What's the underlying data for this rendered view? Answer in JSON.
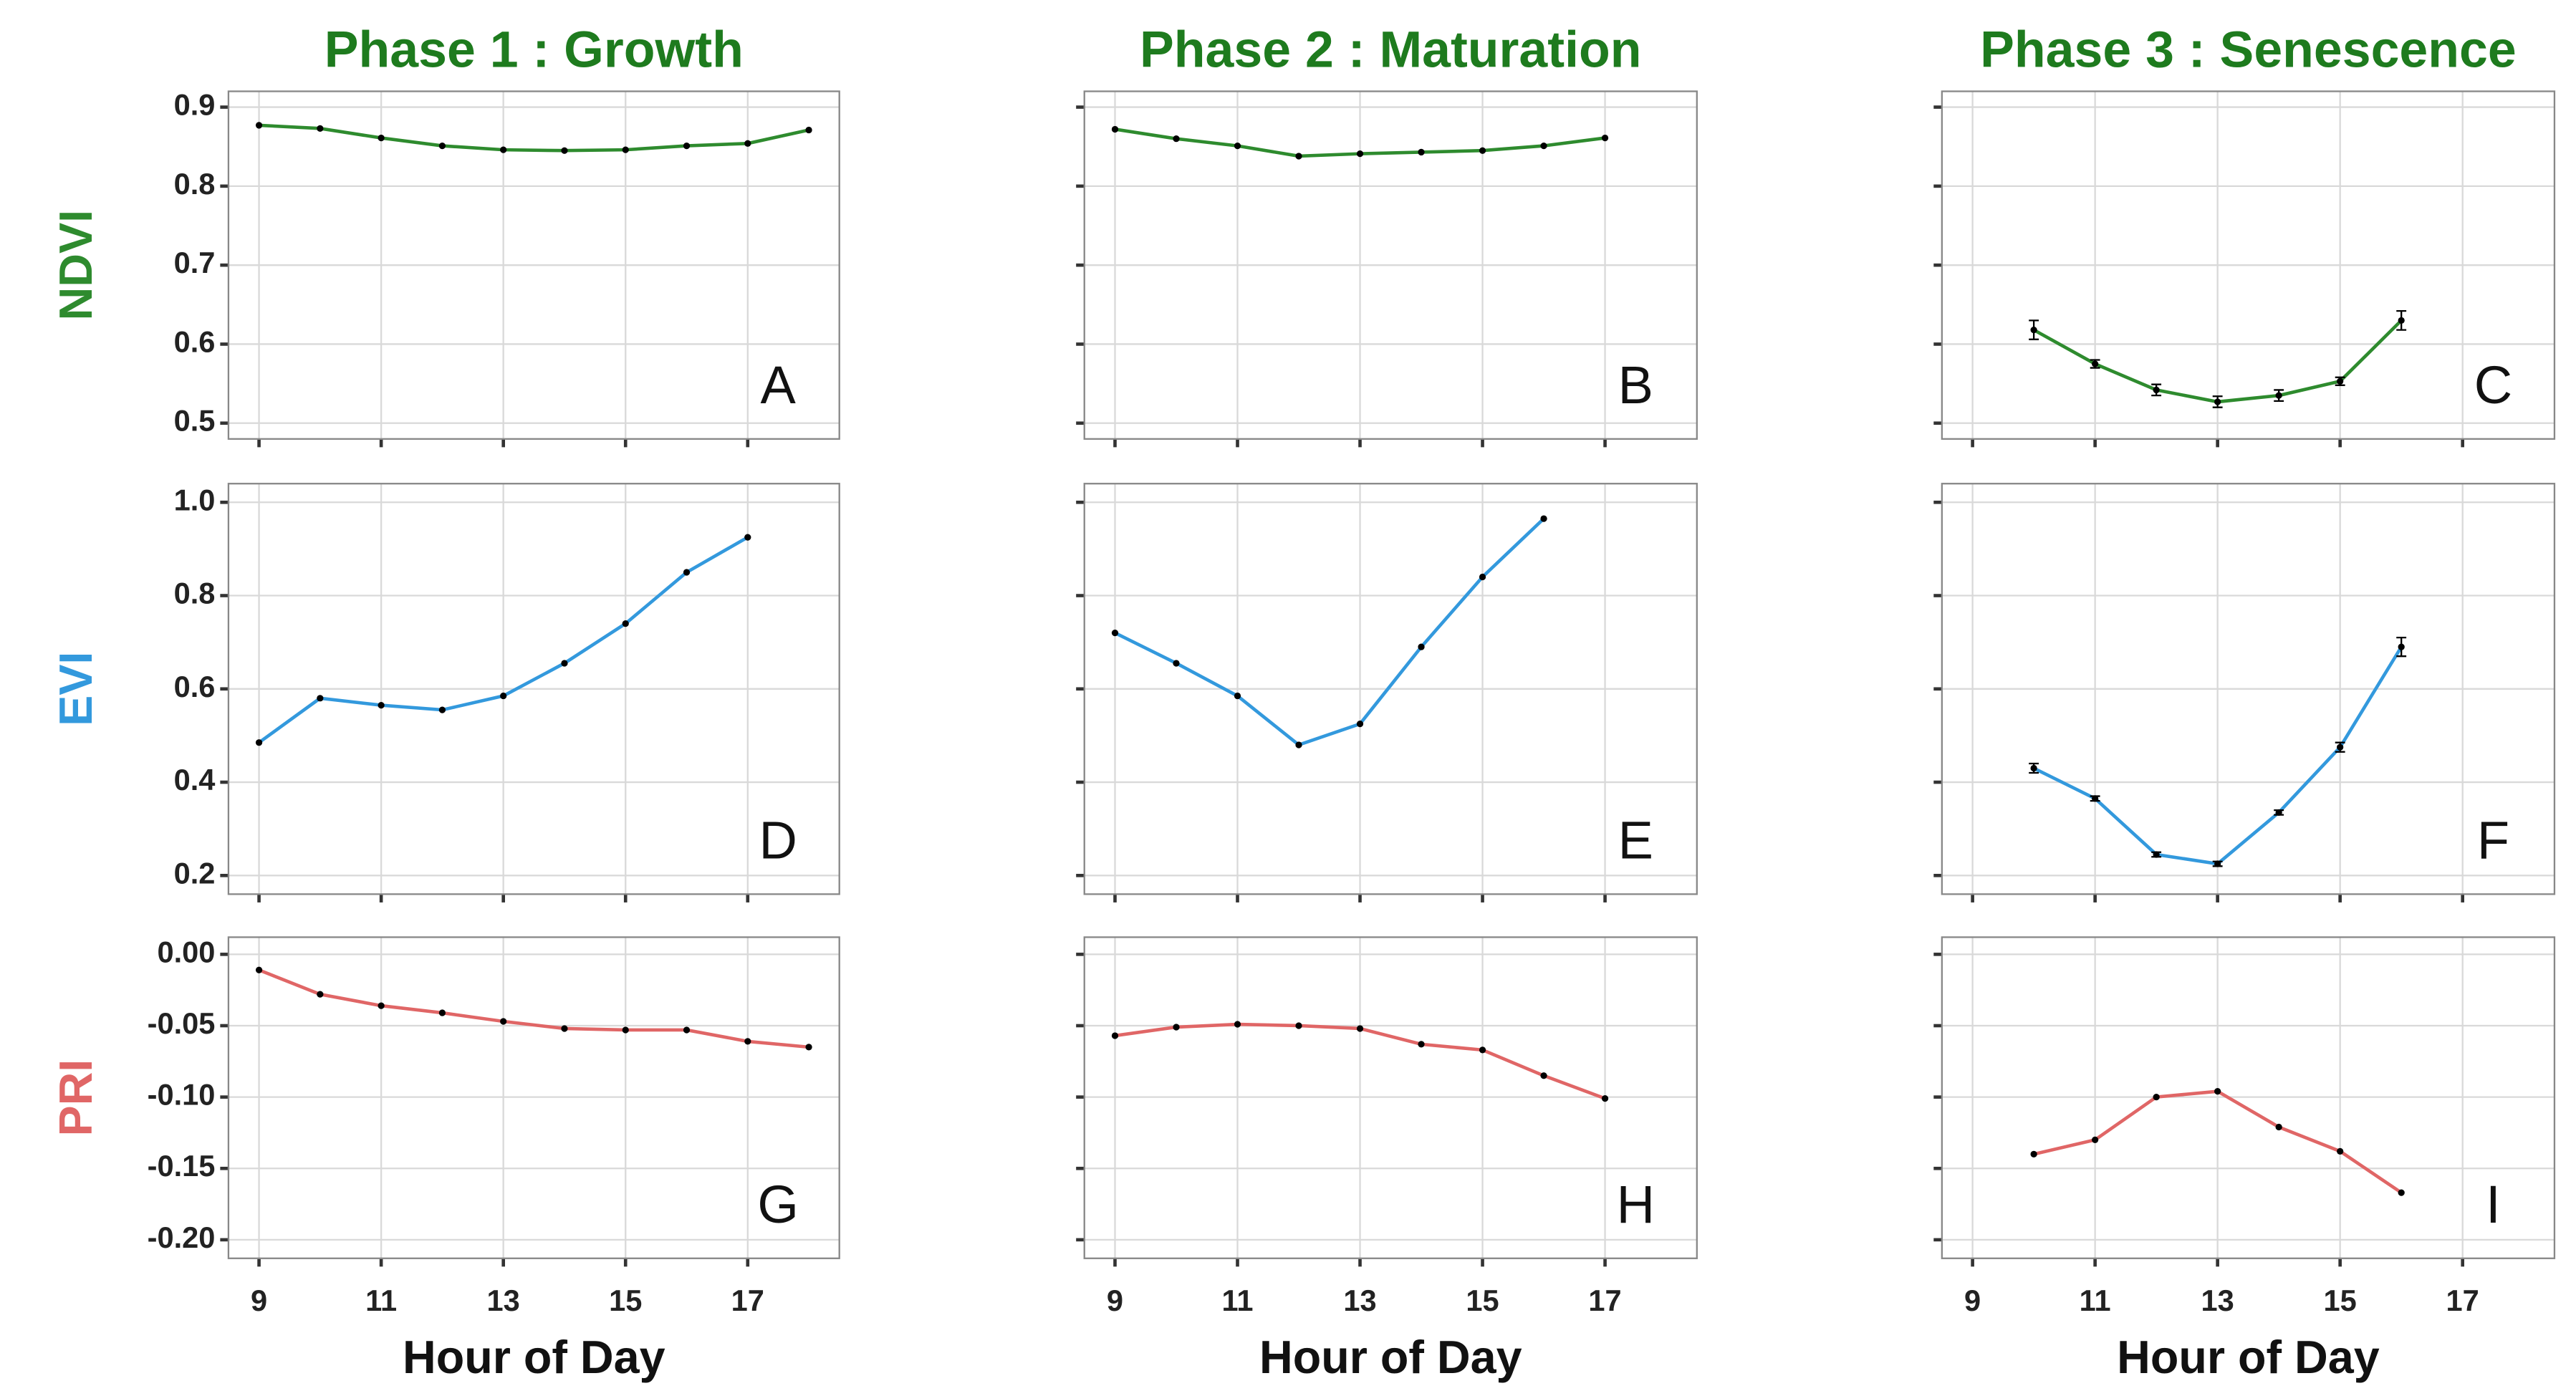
{
  "chart_data": [
    {
      "type": "line",
      "title": "Phase 1 : Growth",
      "ylabel": "NDVI",
      "annotation": "A",
      "color": "#2e8b2e",
      "x": [
        9,
        10,
        11,
        12,
        13,
        14,
        15,
        16,
        17,
        18
      ],
      "values": [
        0.877,
        0.873,
        0.861,
        0.851,
        0.846,
        0.845,
        0.846,
        0.851,
        0.854,
        0.871
      ],
      "xlim": [
        8.5,
        18.5
      ],
      "xticks": [
        9,
        11,
        13,
        15,
        17
      ],
      "ylim": [
        0.48,
        0.92
      ],
      "yticks": [
        0.5,
        0.6,
        0.7,
        0.8,
        0.9
      ],
      "grid": true
    },
    {
      "type": "line",
      "title": "Phase 2 : Maturation",
      "annotation": "B",
      "color": "#2e8b2e",
      "x": [
        9,
        10,
        11,
        12,
        13,
        14,
        15,
        16,
        17
      ],
      "values": [
        0.872,
        0.86,
        0.851,
        0.838,
        0.841,
        0.843,
        0.845,
        0.851,
        0.861
      ],
      "xlim": [
        8.5,
        18.5
      ],
      "xticks": [
        9,
        11,
        13,
        15,
        17
      ],
      "ylim": [
        0.48,
        0.92
      ],
      "yticks": [
        0.5,
        0.6,
        0.7,
        0.8,
        0.9
      ],
      "grid": true
    },
    {
      "type": "line",
      "title": "Phase 3 : Senescence",
      "annotation": "C",
      "color": "#2e8b2e",
      "x": [
        10,
        11,
        12,
        13,
        14,
        15,
        16
      ],
      "values": [
        0.618,
        0.575,
        0.542,
        0.527,
        0.535,
        0.553,
        0.63
      ],
      "errors": [
        0.012,
        0.005,
        0.007,
        0.007,
        0.007,
        0.005,
        0.012
      ],
      "xlim": [
        8.5,
        18.5
      ],
      "xticks": [
        9,
        11,
        13,
        15,
        17
      ],
      "ylim": [
        0.48,
        0.92
      ],
      "yticks": [
        0.5,
        0.6,
        0.7,
        0.8,
        0.9
      ],
      "grid": true
    },
    {
      "type": "line",
      "ylabel": "EVI",
      "annotation": "D",
      "color": "#3399dd",
      "x": [
        9,
        10,
        11,
        12,
        13,
        14,
        15,
        16,
        17
      ],
      "values": [
        0.485,
        0.58,
        0.565,
        0.555,
        0.585,
        0.655,
        0.74,
        0.85,
        0.925
      ],
      "xlim": [
        8.5,
        18.5
      ],
      "xticks": [
        9,
        11,
        13,
        15,
        17
      ],
      "ylim": [
        0.16,
        1.04
      ],
      "yticks": [
        0.2,
        0.4,
        0.6,
        0.8,
        {
          "value": 1,
          "label": "1.0"
        }
      ],
      "grid": true
    },
    {
      "type": "line",
      "annotation": "E",
      "color": "#3399dd",
      "x": [
        9,
        10,
        11,
        12,
        13,
        14,
        15,
        16
      ],
      "values": [
        0.72,
        0.655,
        0.585,
        0.48,
        0.525,
        0.69,
        0.84,
        0.965
      ],
      "xlim": [
        8.5,
        18.5
      ],
      "xticks": [
        9,
        11,
        13,
        15,
        17
      ],
      "ylim": [
        0.16,
        1.04
      ],
      "yticks": [
        0.2,
        0.4,
        0.6,
        0.8,
        1
      ],
      "grid": true
    },
    {
      "type": "line",
      "annotation": "F",
      "color": "#3399dd",
      "x": [
        10,
        11,
        12,
        13,
        14,
        15,
        16
      ],
      "values": [
        0.43,
        0.365,
        0.245,
        0.225,
        0.335,
        0.475,
        0.69
      ],
      "errors": [
        0.01,
        0.005,
        0.005,
        0.005,
        0.005,
        0.01,
        0.02
      ],
      "xlim": [
        8.5,
        18.5
      ],
      "xticks": [
        9,
        11,
        13,
        15,
        17
      ],
      "ylim": [
        0.16,
        1.04
      ],
      "yticks": [
        0.2,
        0.4,
        0.6,
        0.8,
        1
      ],
      "grid": true
    },
    {
      "type": "line",
      "ylabel": "PRI",
      "xlabel": "Hour of Day",
      "annotation": "G",
      "color": "#e06666",
      "x": [
        9,
        10,
        11,
        12,
        13,
        14,
        15,
        16,
        17,
        18
      ],
      "values": [
        -0.011,
        -0.028,
        -0.036,
        -0.041,
        -0.047,
        -0.052,
        -0.053,
        -0.053,
        -0.061,
        -0.065
      ],
      "xlim": [
        8.5,
        18.5
      ],
      "xticks": [
        9,
        11,
        13,
        15,
        17
      ],
      "ylim": [
        -0.213,
        0.012
      ],
      "yticks": [
        {
          "value": 0,
          "label": "0.00"
        },
        {
          "value": -0.05,
          "label": "-0.05"
        },
        {
          "value": -0.1,
          "label": "-0.10"
        },
        {
          "value": -0.15,
          "label": "-0.15"
        },
        {
          "value": -0.2,
          "label": "-0.20"
        }
      ],
      "grid": true
    },
    {
      "type": "line",
      "xlabel": "Hour of Day",
      "annotation": "H",
      "color": "#e06666",
      "x": [
        9,
        10,
        11,
        12,
        13,
        14,
        15,
        16,
        17
      ],
      "values": [
        -0.057,
        -0.051,
        -0.049,
        -0.05,
        -0.052,
        -0.063,
        -0.067,
        -0.085,
        -0.101
      ],
      "xlim": [
        8.5,
        18.5
      ],
      "xticks": [
        9,
        11,
        13,
        15,
        17
      ],
      "ylim": [
        -0.213,
        0.012
      ],
      "yticks": [
        0,
        -0.05,
        -0.1,
        -0.15,
        -0.2
      ],
      "grid": true
    },
    {
      "type": "line",
      "xlabel": "Hour of Day",
      "annotation": "I",
      "color": "#e06666",
      "x": [
        10,
        11,
        12,
        13,
        14,
        15,
        16
      ],
      "values": [
        -0.14,
        -0.13,
        -0.1,
        -0.096,
        -0.121,
        -0.138,
        -0.167
      ],
      "xlim": [
        8.5,
        18.5
      ],
      "xticks": [
        9,
        11,
        13,
        15,
        17
      ],
      "ylim": [
        -0.213,
        0.012
      ],
      "yticks": [
        0,
        -0.05,
        -0.1,
        -0.15,
        -0.2
      ],
      "grid": true
    }
  ]
}
